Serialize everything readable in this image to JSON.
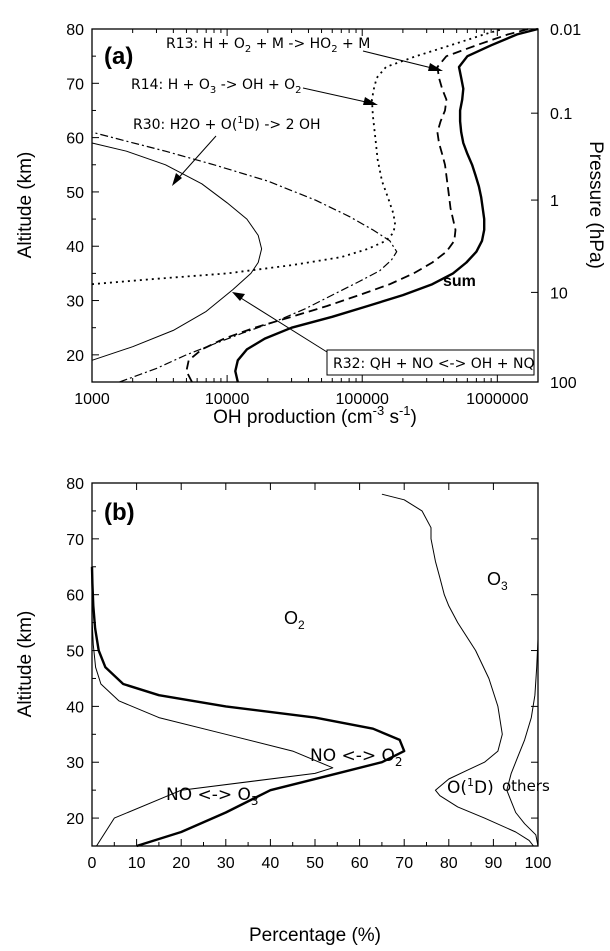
{
  "chart_data": [
    {
      "panel": "(a)",
      "type": "line",
      "xlabel": "OH production (cm",
      "xlabel_sup1": "-3",
      "xlabel_mid": " s",
      "xlabel_sup2": "-1",
      "xlabel_end": ")",
      "ylabel": "Altitude (km)",
      "y2label": "Pressure (hPa)",
      "xscale": "log",
      "xlim": [
        1000,
        2000000
      ],
      "ylim": [
        15,
        80
      ],
      "x_ticks": [
        "1000",
        "10000",
        "100000",
        "1000000"
      ],
      "y_ticks": [
        "20",
        "30",
        "40",
        "50",
        "60",
        "70",
        "80"
      ],
      "y2_ticks": [
        {
          "label": "0.01",
          "altitude": 80
        },
        {
          "label": "0.1",
          "altitude": 64.5
        },
        {
          "label": "1",
          "altitude": 48.5
        },
        {
          "label": "10",
          "altitude": 31.5
        },
        {
          "label": "100",
          "altitude": 15
        }
      ],
      "series": [
        {
          "id": "sum",
          "style": "solid-thick",
          "points": [
            [
              12000,
              15
            ],
            [
              11500,
              17
            ],
            [
              12000,
              19
            ],
            [
              14000,
              21
            ],
            [
              19000,
              23
            ],
            [
              30000,
              25
            ],
            [
              60000,
              27
            ],
            [
              110000,
              29
            ],
            [
              200000,
              31
            ],
            [
              330000,
              33
            ],
            [
              470000,
              35
            ],
            [
              590000,
              37
            ],
            [
              700000,
              39
            ],
            [
              770000,
              41
            ],
            [
              800000,
              43
            ],
            [
              800000,
              45
            ],
            [
              780000,
              47
            ],
            [
              760000,
              49
            ],
            [
              730000,
              51
            ],
            [
              690000,
              53
            ],
            [
              650000,
              55
            ],
            [
              600000,
              57
            ],
            [
              560000,
              59
            ],
            [
              540000,
              61
            ],
            [
              530000,
              63
            ],
            [
              530000,
              65
            ],
            [
              550000,
              67
            ],
            [
              560000,
              69
            ],
            [
              540000,
              71
            ],
            [
              520000,
              73
            ],
            [
              600000,
              75
            ],
            [
              900000,
              77
            ],
            [
              1400000,
              79
            ],
            [
              2000000,
              80
            ]
          ]
        },
        {
          "id": "r13",
          "style": "dashed",
          "points": [
            [
              5500,
              15
            ],
            [
              5000,
              17
            ],
            [
              5200,
              19
            ],
            [
              6500,
              21
            ],
            [
              9500,
              23
            ],
            [
              16000,
              25
            ],
            [
              30000,
              27
            ],
            [
              55000,
              29
            ],
            [
              95000,
              31
            ],
            [
              160000,
              33
            ],
            [
              240000,
              35
            ],
            [
              330000,
              37
            ],
            [
              420000,
              39
            ],
            [
              480000,
              41
            ],
            [
              490000,
              43
            ],
            [
              470000,
              45
            ],
            [
              450000,
              47
            ],
            [
              440000,
              49
            ],
            [
              430000,
              51
            ],
            [
              420000,
              53
            ],
            [
              410000,
              55
            ],
            [
              390000,
              57
            ],
            [
              370000,
              59
            ],
            [
              360000,
              61
            ],
            [
              380000,
              63
            ],
            [
              410000,
              65
            ],
            [
              420000,
              67
            ],
            [
              390000,
              69
            ],
            [
              370000,
              71
            ],
            [
              360000,
              73
            ],
            [
              420000,
              75
            ],
            [
              700000,
              77
            ],
            [
              1200000,
              79
            ],
            [
              1700000,
              80
            ]
          ]
        },
        {
          "id": "r14",
          "style": "dotted",
          "points": [
            [
              1000,
              33
            ],
            [
              3000,
              34
            ],
            [
              10000,
              35
            ],
            [
              30000,
              36.5
            ],
            [
              70000,
              38
            ],
            [
              110000,
              39.5
            ],
            [
              150000,
              41
            ],
            [
              170000,
              42.5
            ],
            [
              175000,
              44
            ],
            [
              170000,
              46
            ],
            [
              155000,
              49
            ],
            [
              140000,
              52
            ],
            [
              130000,
              56
            ],
            [
              125000,
              60
            ],
            [
              120000,
              64
            ],
            [
              118000,
              67
            ],
            [
              122000,
              69
            ],
            [
              128000,
              71
            ],
            [
              150000,
              73
            ],
            [
              250000,
              75
            ],
            [
              450000,
              77
            ],
            [
              800000,
              79
            ],
            [
              1100000,
              80
            ]
          ]
        },
        {
          "id": "r30",
          "style": "solid-thin",
          "points": [
            [
              1000,
              19
            ],
            [
              2000,
              21.5
            ],
            [
              4000,
              24.5
            ],
            [
              7000,
              28
            ],
            [
              11000,
              32
            ],
            [
              15000,
              35
            ],
            [
              17000,
              37
            ],
            [
              18000,
              39.5
            ],
            [
              17000,
              42
            ],
            [
              14000,
              45
            ],
            [
              10000,
              48
            ],
            [
              6500,
              51.5
            ],
            [
              3500,
              55
            ],
            [
              1800,
              57.5
            ],
            [
              1000,
              59
            ]
          ]
        },
        {
          "id": "r32",
          "style": "dash-dot",
          "points": [
            [
              1600,
              15
            ],
            [
              3000,
              17.5
            ],
            [
              5000,
              20
            ],
            [
              8000,
              22
            ],
            [
              13000,
              24
            ],
            [
              22000,
              26
            ],
            [
              38000,
              28.5
            ],
            [
              60000,
              31
            ],
            [
              95000,
              33.5
            ],
            [
              135000,
              35.5
            ],
            [
              165000,
              37.5
            ],
            [
              180000,
              39
            ],
            [
              160000,
              41
            ],
            [
              120000,
              43
            ],
            [
              80000,
              45.5
            ],
            [
              45000,
              48.5
            ],
            [
              20000,
              52
            ],
            [
              8000,
              55
            ],
            [
              3500,
              57.5
            ],
            [
              1700,
              59.5
            ],
            [
              1000,
              61
            ]
          ]
        }
      ],
      "labels": {
        "panel": "(a)",
        "sum": "sum",
        "r13_pre": "R13: H + O",
        "r13_s1": "2",
        "r13_mid": " + M -> HO",
        "r13_s2": "2",
        "r13_post": " + M",
        "r14_pre": "R14: H + O",
        "r14_s1": "3",
        "r14_mid": " -> OH + O",
        "r14_s2": "2",
        "r30_pre": "R30: H2O + O(",
        "r30_sup": "1",
        "r30_post": "D) -> 2 OH",
        "r32": "R32: QH + NO <-> OH + NQ"
      }
    },
    {
      "panel": "(b)",
      "type": "line",
      "xlabel": "Percentage (%)",
      "ylabel": "Altitude (km)",
      "xlim": [
        0,
        100
      ],
      "ylim": [
        15,
        80
      ],
      "x_ticks": [
        "0",
        "10",
        "20",
        "30",
        "40",
        "50",
        "60",
        "70",
        "80",
        "90",
        "100"
      ],
      "y_ticks": [
        "20",
        "30",
        "40",
        "50",
        "60",
        "70",
        "80"
      ],
      "series": [
        {
          "id": "thick-boundary",
          "style": "solid-thick",
          "points": [
            [
              10,
              15
            ],
            [
              20,
              17.5
            ],
            [
              30,
              21
            ],
            [
              40,
              25
            ],
            [
              55,
              28
            ],
            [
              65,
              30
            ],
            [
              70,
              32
            ],
            [
              69,
              34
            ],
            [
              63,
              36
            ],
            [
              50,
              38
            ],
            [
              30,
              40
            ],
            [
              15,
              42
            ],
            [
              7,
              44
            ],
            [
              3,
              47
            ],
            [
              1.5,
              50
            ],
            [
              0.7,
              54
            ],
            [
              0.3,
              58
            ],
            [
              0.1,
              62
            ],
            [
              0,
              65
            ]
          ]
        },
        {
          "id": "thin-left",
          "style": "solid-thin",
          "points": [
            [
              1,
              15
            ],
            [
              5,
              20
            ],
            [
              20,
              25
            ],
            [
              50,
              28
            ],
            [
              54,
              29
            ],
            [
              45,
              32
            ],
            [
              30,
              35
            ],
            [
              15,
              38
            ],
            [
              6,
              41
            ],
            [
              2,
              44
            ],
            [
              0.8,
              47
            ],
            [
              0.3,
              51
            ],
            [
              0.05,
              55
            ],
            [
              0,
              58
            ]
          ]
        },
        {
          "id": "o1d-boundary",
          "style": "solid-thin",
          "points": [
            [
              99,
              15
            ],
            [
              98,
              16
            ],
            [
              95,
              17.5
            ],
            [
              88,
              20
            ],
            [
              82,
              22
            ],
            [
              78,
              24
            ],
            [
              77,
              25
            ],
            [
              80,
              27
            ],
            [
              84,
              28.5
            ],
            [
              88,
              30
            ],
            [
              91,
              32
            ],
            [
              92,
              35
            ],
            [
              91,
              40
            ],
            [
              89,
              45
            ],
            [
              86,
              50
            ],
            [
              82,
              55
            ],
            [
              80,
              58
            ],
            [
              79,
              60
            ],
            [
              78,
              63
            ],
            [
              77,
              66
            ],
            [
              76,
              70
            ],
            [
              76,
              72
            ],
            [
              74,
              75
            ],
            [
              70,
              77
            ],
            [
              65,
              78
            ]
          ]
        },
        {
          "id": "others-boundary",
          "style": "solid-thin",
          "points": [
            [
              100,
              15
            ],
            [
              99.5,
              17
            ],
            [
              97,
              19
            ],
            [
              95,
              21
            ],
            [
              94,
              23
            ],
            [
              93,
              25
            ],
            [
              94,
              28
            ],
            [
              95.5,
              31
            ],
            [
              97,
              34
            ],
            [
              98.5,
              38
            ],
            [
              99.3,
              42
            ],
            [
              99.7,
              47
            ],
            [
              100,
              52
            ]
          ]
        }
      ],
      "labels": {
        "panel": "(b)",
        "o2_main": "O",
        "o2_main_sub": "2",
        "o3_top": "O",
        "o3_top_sub": "3",
        "no_o2_pre": "NO <-> O",
        "no_o2_sub": "2",
        "no_o3_pre": "NO <-> O",
        "no_o3_sub": "3",
        "o1d_pre": "O(",
        "o1d_sup": "1",
        "o1d_post": "D)",
        "others": "others"
      }
    }
  ]
}
